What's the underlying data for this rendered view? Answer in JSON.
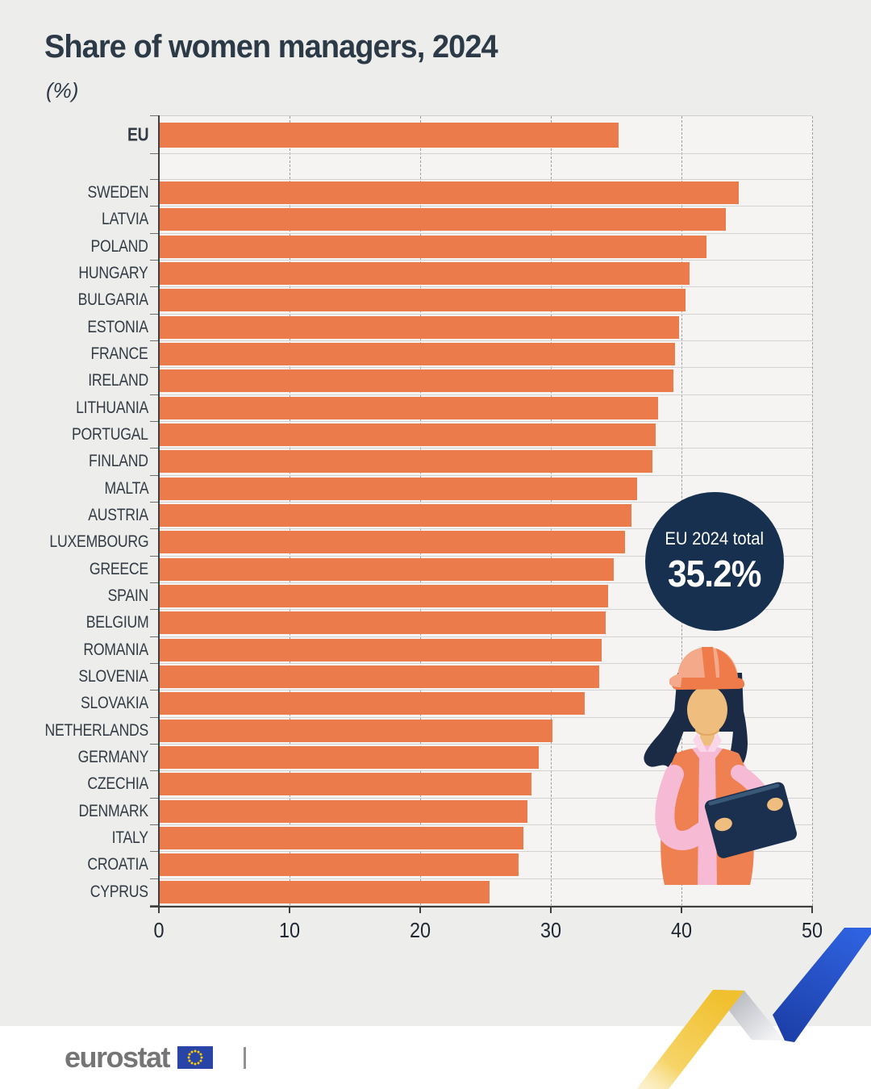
{
  "title": "Share of women managers, 2024",
  "subtitle": "(%)",
  "chart_data": {
    "type": "bar",
    "orientation": "horizontal",
    "title": "Share of women managers, 2024",
    "unit_label": "(%)",
    "xlim": [
      0,
      50
    ],
    "xticks": [
      0,
      10,
      20,
      30,
      40,
      50
    ],
    "grid": "vertical-dashed",
    "bar_color": "#EB7B4B",
    "eu_row": {
      "label": "EU",
      "value": 35.2
    },
    "categories": [
      "SWEDEN",
      "LATVIA",
      "POLAND",
      "HUNGARY",
      "BULGARIA",
      "ESTONIA",
      "FRANCE",
      "IRELAND",
      "LITHUANIA",
      "PORTUGAL",
      "FINLAND",
      "MALTA",
      "AUSTRIA",
      "LUXEMBOURG",
      "GREECE",
      "SPAIN",
      "BELGIUM",
      "ROMANIA",
      "SLOVENIA",
      "SLOVAKIA",
      "NETHERLANDS",
      "GERMANY",
      "CZECHIA",
      "DENMARK",
      "ITALY",
      "CROATIA",
      "CYPRUS"
    ],
    "values": [
      44.4,
      43.4,
      41.9,
      40.6,
      40.3,
      39.8,
      39.5,
      39.4,
      38.2,
      38.0,
      37.8,
      36.6,
      36.2,
      35.7,
      34.8,
      34.4,
      34.2,
      33.9,
      33.7,
      32.6,
      30.1,
      29.1,
      28.5,
      28.2,
      27.9,
      27.5,
      25.3
    ],
    "badge": {
      "title": "EU 2024 total",
      "value": "35.2%"
    }
  },
  "colors": {
    "page_bg": "#EDEDEC",
    "plot_bg": "#F5F4F2",
    "bar": "#EB7B4B",
    "navy": "#17304F",
    "text": "#2C3A47",
    "footer_bg": "#FFFFFF",
    "brand_gray": "#757575",
    "flag_blue": "#2744A6",
    "star_yellow": "#FFCC00",
    "ribbon_yellow": "#F3C73B",
    "ribbon_blue": "#2E59D9"
  },
  "footer": {
    "brand": "eurostat",
    "flag_icon": "eu-flag-icon",
    "separator": "|"
  },
  "decorations": {
    "illustration": "woman-engineer-with-tablet",
    "ribbon": "yellow-blue-zigzag-ribbon"
  }
}
